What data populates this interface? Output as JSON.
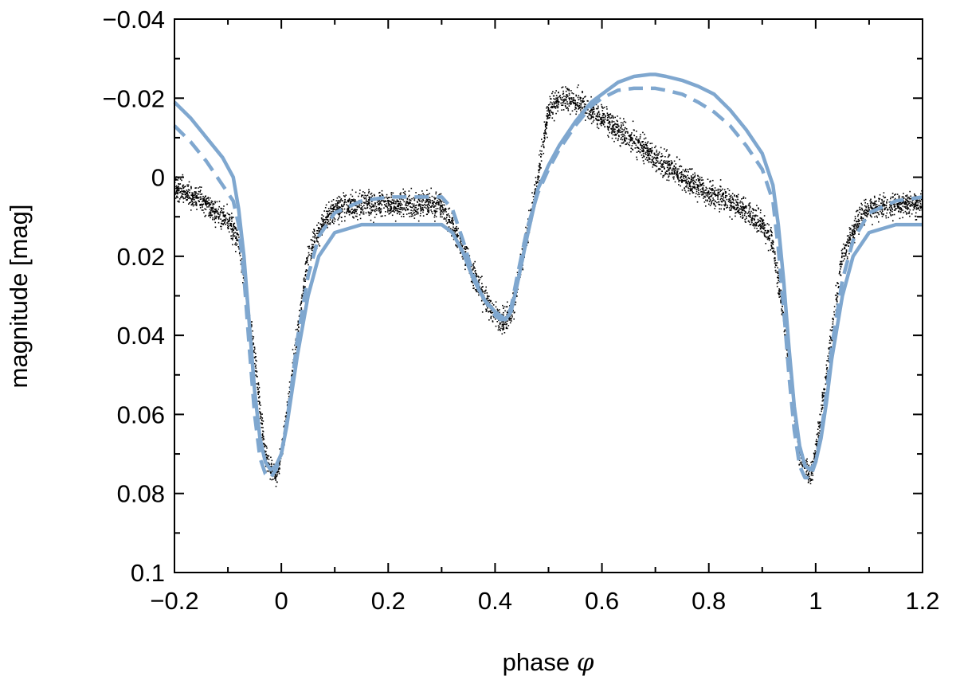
{
  "chart_data": {
    "type": "scatter",
    "title": "",
    "xlabel": "phase",
    "xlabel_symbol": "φ",
    "ylabel": "magnitude [mag]",
    "xlim": [
      -0.2,
      1.2
    ],
    "ylim": [
      -0.04,
      0.1
    ],
    "y_inverted": true,
    "grid": false,
    "legend": "none",
    "x_ticks": [
      -0.2,
      0,
      0.2,
      0.4,
      0.6,
      0.8,
      1,
      1.2
    ],
    "x_tick_labels": [
      "−0.2",
      "0",
      "0.2",
      "0.4",
      "0.6",
      "0.8",
      "1",
      "1.2"
    ],
    "y_ticks": [
      -0.04,
      -0.02,
      0,
      0.02,
      0.04,
      0.06,
      0.08,
      0.1
    ],
    "y_tick_labels": [
      "−0.04",
      "−0.02",
      "0",
      "0.02",
      "0.04",
      "0.06",
      "0.08",
      "0.1"
    ],
    "series": [
      {
        "style": "points",
        "color": "#000000",
        "x": [
          -0.2,
          -0.15,
          -0.1,
          -0.08,
          -0.05,
          -0.03,
          -0.01,
          0,
          0.02,
          0.05,
          0.08,
          0.1,
          0.15,
          0.2,
          0.25,
          0.3,
          0.33,
          0.36,
          0.39,
          0.41,
          0.43,
          0.45,
          0.47,
          0.48,
          0.5,
          0.52,
          0.55,
          0.6,
          0.65,
          0.7,
          0.75,
          0.8,
          0.85,
          0.9,
          0.92,
          0.95,
          0.97,
          0.99,
          1,
          1.02,
          1.05,
          1.08,
          1.1,
          1.15,
          1.2
        ],
        "y": [
          0.003,
          0.006,
          0.011,
          0.016,
          0.045,
          0.071,
          0.076,
          0.07,
          0.05,
          0.02,
          0.011,
          0.008,
          0.007,
          0.007,
          0.007,
          0.007,
          0.015,
          0.025,
          0.033,
          0.037,
          0.035,
          0.022,
          0.007,
          0.0,
          -0.017,
          -0.02,
          -0.019,
          -0.015,
          -0.01,
          -0.005,
          0.0,
          0.004,
          0.007,
          0.012,
          0.017,
          0.045,
          0.071,
          0.076,
          0.07,
          0.05,
          0.02,
          0.011,
          0.008,
          0.007,
          0.007
        ]
      },
      {
        "style": "solid",
        "color": "#7fa7cf",
        "x": [
          -0.2,
          -0.17,
          -0.14,
          -0.11,
          -0.09,
          -0.08,
          -0.07,
          -0.06,
          -0.05,
          -0.04,
          -0.03,
          -0.02,
          -0.01,
          0,
          0.01,
          0.02,
          0.03,
          0.05,
          0.07,
          0.1,
          0.15,
          0.2,
          0.25,
          0.3,
          0.32,
          0.34,
          0.36,
          0.38,
          0.4,
          0.41,
          0.42,
          0.43,
          0.44,
          0.46,
          0.48,
          0.5,
          0.52,
          0.55,
          0.58,
          0.6,
          0.63,
          0.66,
          0.69,
          0.7,
          0.72,
          0.75,
          0.78,
          0.81,
          0.84,
          0.87,
          0.9,
          0.92,
          0.93,
          0.94,
          0.95,
          0.96,
          0.97,
          0.98,
          0.99,
          1,
          1.01,
          1.02,
          1.03,
          1.05,
          1.07,
          1.1,
          1.15,
          1.2
        ],
        "y": [
          -0.019,
          -0.015,
          -0.01,
          -0.005,
          0.0,
          0.008,
          0.02,
          0.037,
          0.054,
          0.066,
          0.072,
          0.074,
          0.073,
          0.07,
          0.063,
          0.054,
          0.045,
          0.03,
          0.02,
          0.014,
          0.012,
          0.012,
          0.012,
          0.012,
          0.014,
          0.019,
          0.026,
          0.031,
          0.034,
          0.035,
          0.036,
          0.034,
          0.028,
          0.015,
          0.003,
          -0.003,
          -0.008,
          -0.014,
          -0.019,
          -0.021,
          -0.024,
          -0.0255,
          -0.026,
          -0.026,
          -0.0255,
          -0.0245,
          -0.023,
          -0.021,
          -0.017,
          -0.012,
          -0.006,
          0.002,
          0.012,
          0.026,
          0.043,
          0.058,
          0.068,
          0.073,
          0.074,
          0.072,
          0.066,
          0.057,
          0.046,
          0.03,
          0.02,
          0.014,
          0.012,
          0.012
        ]
      },
      {
        "style": "dashed",
        "color": "#7fa7cf",
        "x": [
          -0.2,
          -0.17,
          -0.14,
          -0.11,
          -0.09,
          -0.08,
          -0.07,
          -0.06,
          -0.05,
          -0.04,
          -0.03,
          -0.02,
          -0.01,
          0,
          0.01,
          0.02,
          0.03,
          0.05,
          0.07,
          0.1,
          0.15,
          0.2,
          0.25,
          0.3,
          0.32,
          0.34,
          0.36,
          0.38,
          0.4,
          0.41,
          0.42,
          0.43,
          0.44,
          0.46,
          0.48,
          0.5,
          0.52,
          0.55,
          0.58,
          0.6,
          0.63,
          0.66,
          0.69,
          0.7,
          0.72,
          0.75,
          0.78,
          0.81,
          0.84,
          0.87,
          0.9,
          0.92,
          0.93,
          0.94,
          0.95,
          0.96,
          0.97,
          0.98,
          0.99,
          1,
          1.01,
          1.02,
          1.03,
          1.05,
          1.07,
          1.1,
          1.15,
          1.2
        ],
        "y": [
          -0.013,
          -0.009,
          -0.004,
          0.002,
          0.006,
          0.012,
          0.025,
          0.043,
          0.06,
          0.071,
          0.075,
          0.076,
          0.074,
          0.07,
          0.062,
          0.052,
          0.041,
          0.025,
          0.015,
          0.009,
          0.006,
          0.005,
          0.005,
          0.005,
          0.008,
          0.016,
          0.025,
          0.031,
          0.035,
          0.036,
          0.036,
          0.033,
          0.026,
          0.013,
          0.004,
          -0.002,
          -0.007,
          -0.013,
          -0.018,
          -0.02,
          -0.022,
          -0.0225,
          -0.0225,
          -0.0225,
          -0.022,
          -0.021,
          -0.019,
          -0.0165,
          -0.013,
          -0.008,
          -0.002,
          0.006,
          0.018,
          0.033,
          0.05,
          0.064,
          0.073,
          0.076,
          0.076,
          0.072,
          0.065,
          0.055,
          0.043,
          0.026,
          0.016,
          0.009,
          0.006,
          0.005
        ]
      }
    ]
  }
}
